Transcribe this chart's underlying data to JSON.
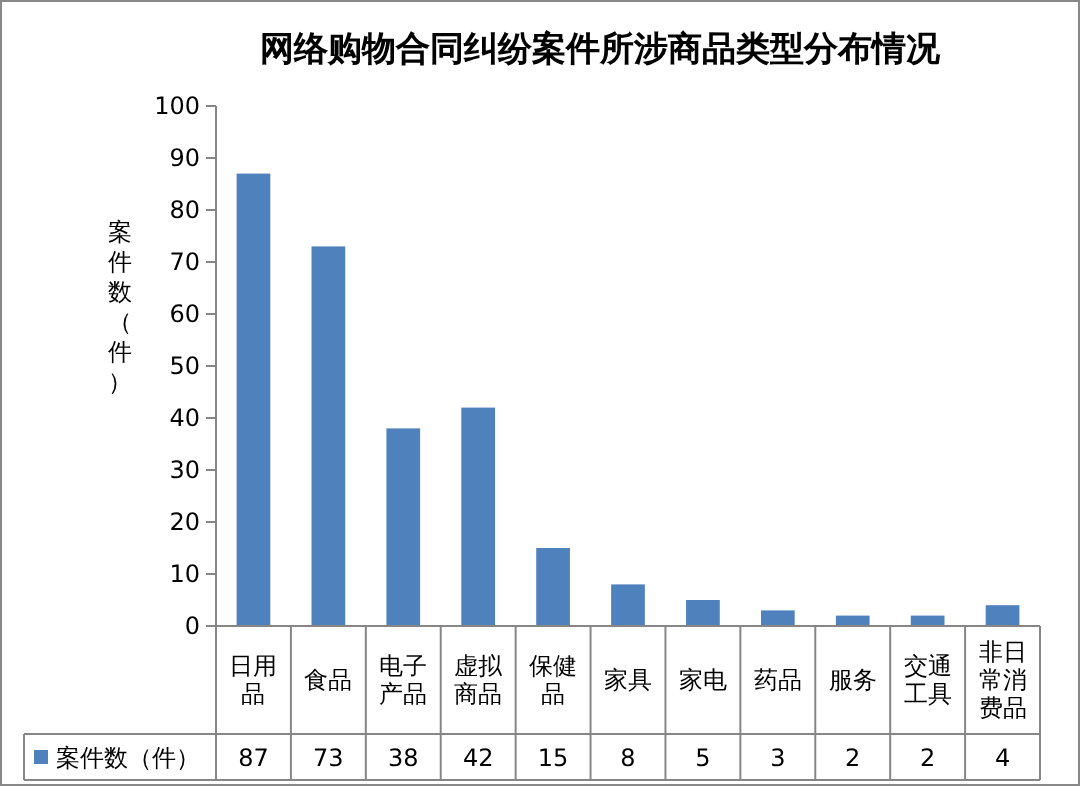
{
  "chart_data": {
    "type": "bar",
    "title": "网络购物合同纠纷案件所涉商品类型分布情况",
    "ylabel": "案件数（件）",
    "categories": [
      "日用品",
      "食品",
      "电子产品",
      "虚拟商品",
      "保健品",
      "家具",
      "家电",
      "药品",
      "服务",
      "交通工具",
      "非日常消费品"
    ],
    "series": [
      {
        "name": "案件数（件）",
        "color": "#4f81bd",
        "values": [
          87,
          73,
          38,
          42,
          15,
          8,
          5,
          3,
          2,
          2,
          4
        ]
      }
    ],
    "ylim": [
      0,
      100
    ],
    "yticks": [
      0,
      10,
      20,
      30,
      40,
      50,
      60,
      70,
      80,
      90,
      100
    ],
    "data_labels": true,
    "legend": "bottom"
  }
}
